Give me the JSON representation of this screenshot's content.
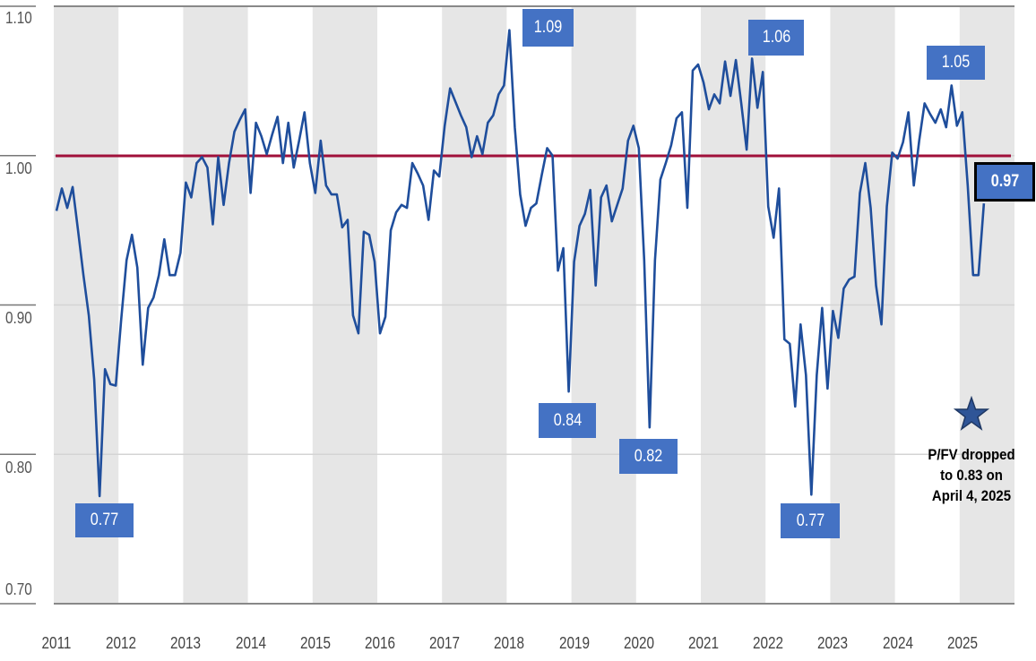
{
  "chart_data": {
    "type": "line",
    "title": "",
    "xlabel": "",
    "ylabel": "",
    "ylim": [
      0.7,
      1.1
    ],
    "y_ticks": [
      "0.70",
      "0.80",
      "0.90",
      "1.00",
      "1.10"
    ],
    "x_ticks": [
      "2011",
      "2012",
      "2013",
      "2014",
      "2015",
      "2016",
      "2017",
      "2018",
      "2019",
      "2020",
      "2021",
      "2022",
      "2023",
      "2024",
      "2025"
    ],
    "grid": "horizontal",
    "shaded_bands": "alternating years (2011, 2013, 2015, 2017, 2019, 2021, 2023, 2025)",
    "x_start": "2011-01",
    "x_frequency": "monthly",
    "values": [
      0.963,
      0.978,
      0.965,
      0.979,
      0.95,
      0.92,
      0.893,
      0.85,
      0.772,
      0.857,
      0.847,
      0.846,
      0.89,
      0.93,
      0.947,
      0.925,
      0.86,
      0.898,
      0.905,
      0.92,
      0.944,
      0.92,
      0.92,
      0.935,
      0.982,
      0.972,
      0.995,
      0.999,
      0.992,
      0.954,
      0.999,
      0.967,
      0.995,
      1.016,
      1.024,
      1.031,
      0.975,
      1.022,
      1.013,
      1.001,
      1.014,
      1.026,
      0.995,
      1.022,
      0.992,
      1.01,
      1.029,
      0.995,
      0.975,
      1.01,
      0.98,
      0.974,
      0.974,
      0.952,
      0.957,
      0.893,
      0.881,
      0.949,
      0.947,
      0.929,
      0.881,
      0.892,
      0.95,
      0.962,
      0.967,
      0.965,
      0.995,
      0.988,
      0.98,
      0.957,
      0.99,
      0.986,
      1.02,
      1.045,
      1.036,
      1.027,
      1.019,
      0.999,
      1.013,
      1.001,
      1.022,
      1.027,
      1.041,
      1.047,
      1.084,
      1.019,
      0.974,
      0.953,
      0.965,
      0.968,
      0.987,
      1.005,
      1.0,
      0.923,
      0.938,
      0.842,
      0.929,
      0.953,
      0.961,
      0.977,
      0.913,
      0.972,
      0.98,
      0.956,
      0.967,
      0.978,
      1.01,
      1.02,
      1.005,
      0.93,
      0.818,
      0.93,
      0.984,
      0.995,
      1.007,
      1.025,
      1.029,
      0.965,
      1.057,
      1.061,
      1.049,
      1.031,
      1.041,
      1.035,
      1.063,
      1.04,
      1.064,
      1.035,
      1.004,
      1.065,
      1.032,
      1.056,
      0.966,
      0.945,
      0.978,
      0.877,
      0.874,
      0.832,
      0.887,
      0.853,
      0.773,
      0.853,
      0.898,
      0.844,
      0.896,
      0.878,
      0.911,
      0.917,
      0.919,
      0.975,
      0.995,
      0.965,
      0.913,
      0.887,
      0.966,
      1.002,
      0.998,
      1.009,
      1.029,
      0.98,
      1.01,
      1.035,
      1.028,
      1.022,
      1.031,
      1.019,
      1.047,
      1.02,
      1.029,
      0.98,
      0.92,
      0.92,
      0.968
    ],
    "reference_line": {
      "value": 1.0,
      "color": "#a0103a"
    },
    "series_color": "#1f4e9c",
    "callouts": [
      {
        "label": "0.77",
        "id": "low-2011"
      },
      {
        "label": "1.09",
        "id": "peak-2018"
      },
      {
        "label": "0.84",
        "id": "low-2018"
      },
      {
        "label": "0.82",
        "id": "low-2020"
      },
      {
        "label": "1.06",
        "id": "peak-2021"
      },
      {
        "label": "0.77",
        "id": "low-2022"
      },
      {
        "label": "1.05",
        "id": "peak-2024"
      },
      {
        "label": "0.97",
        "id": "current"
      }
    ],
    "annotation": {
      "icon": "star-icon",
      "lines": [
        "P/FV dropped",
        "to 0.83 on",
        "April 4, 2025"
      ]
    },
    "colors": {
      "callout_bg": "#4472c4",
      "band": "#e6e6e6",
      "star": "#2f5597"
    }
  }
}
